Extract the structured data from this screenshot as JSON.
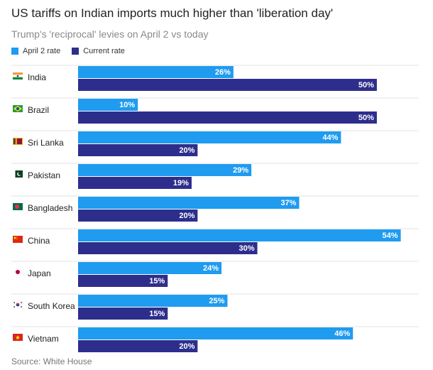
{
  "header": {
    "title": "US tariffs on Indian imports much higher than 'liberation day'",
    "subtitle": "Trump's 'reciprocal' levies on April 2 vs today"
  },
  "footer": {
    "source": "Source: White House"
  },
  "colors": {
    "april": "#1f9bf0",
    "current": "#2d2e8c",
    "gridline": "#e3e3e3",
    "label": "#ffffff"
  },
  "chart_data": {
    "type": "bar",
    "orientation": "horizontal",
    "categories": [
      "India",
      "Brazil",
      "Sri Lanka",
      "Pakistan",
      "Bangladesh",
      "China",
      "Japan",
      "South Korea",
      "Vietnam"
    ],
    "flag_icons": [
      "india-flag-icon",
      "brazil-flag-icon",
      "sri-lanka-flag-icon",
      "pakistan-flag-icon",
      "bangladesh-flag-icon",
      "china-flag-icon",
      "japan-flag-icon",
      "south-korea-flag-icon",
      "vietnam-flag-icon"
    ],
    "series": [
      {
        "name": "April 2 rate",
        "values": [
          26,
          10,
          44,
          29,
          37,
          54,
          24,
          25,
          46
        ]
      },
      {
        "name": "Current rate",
        "values": [
          50,
          50,
          20,
          19,
          20,
          30,
          15,
          15,
          20
        ]
      }
    ],
    "value_suffix": "%",
    "xlim": [
      0,
      55
    ],
    "legend_position": "top-left",
    "grid": "horizontal separators"
  }
}
